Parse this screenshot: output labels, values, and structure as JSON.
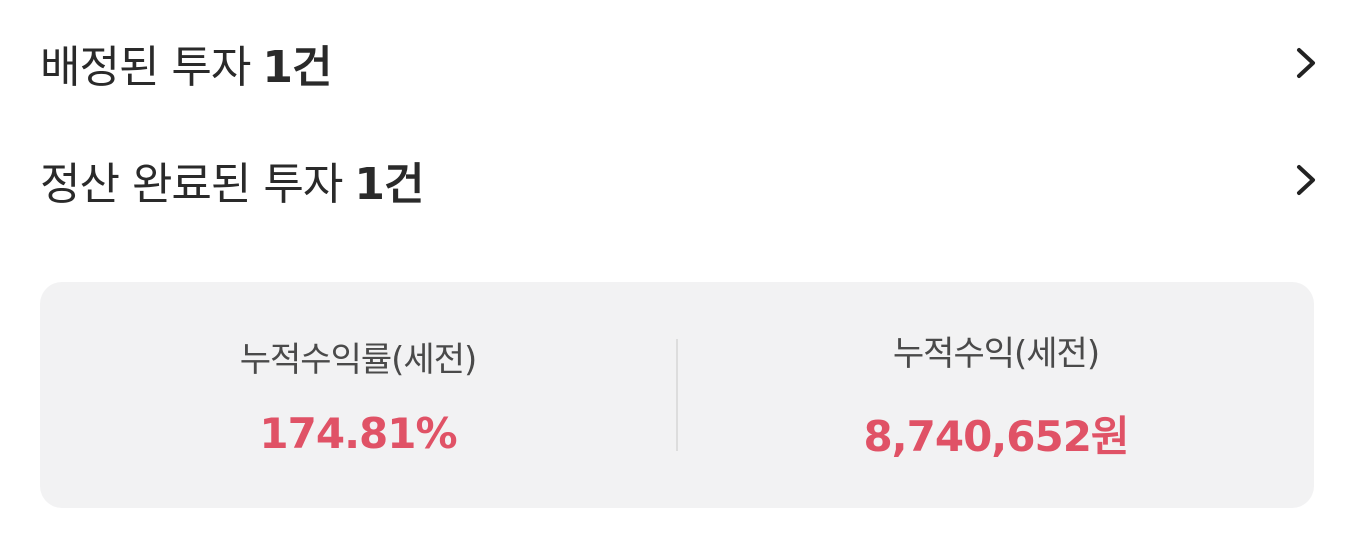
{
  "rows": [
    {
      "label": "배정된 투자",
      "count": "1건"
    },
    {
      "label": "정산 완료된 투자",
      "count": "1건"
    }
  ],
  "icons": {
    "chevron": "chevron-right-icon"
  },
  "summary": {
    "return_rate_label": "누적수익률(세전)",
    "return_rate_value": "174.81%",
    "profit_label": "누적수익(세전)",
    "profit_value": "8,740,652원"
  },
  "colors": {
    "accent": "#e05266",
    "card_bg": "#f2f2f3",
    "text": "#2a2a2a",
    "chevron": "#222222"
  }
}
